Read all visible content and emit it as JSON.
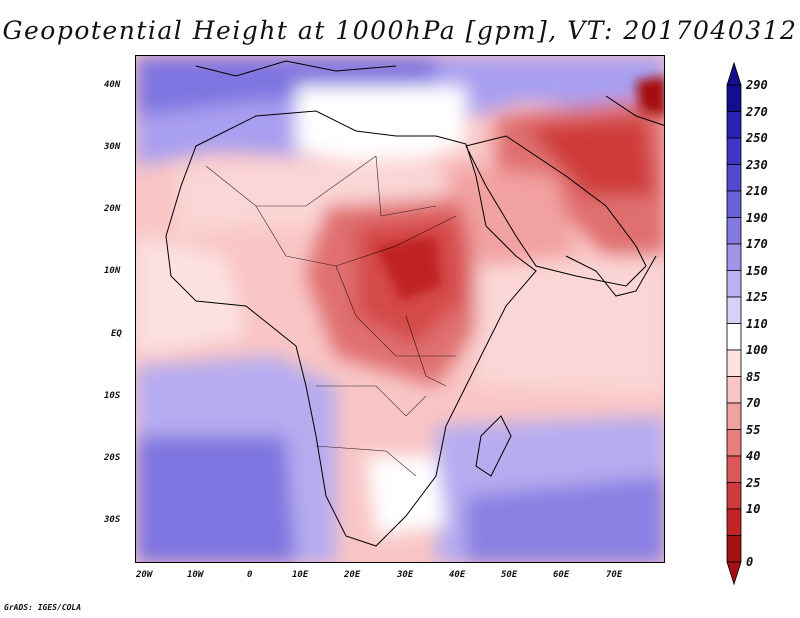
{
  "title": "Geopotential Height at 1000hPa [gpm], VT: 2017040312",
  "credit": "GrADS: IGES/COLA",
  "map": {
    "projection": "latlon",
    "lon_range": [
      -20,
      80
    ],
    "lat_range": [
      -35,
      45
    ],
    "lon_ticks": [
      "20W",
      "10W",
      "0",
      "10E",
      "20E",
      "30E",
      "40E",
      "50E",
      "60E",
      "70E"
    ],
    "lat_ticks": [
      "40N",
      "30N",
      "20N",
      "10N",
      "EQ",
      "10S",
      "20S",
      "30S"
    ]
  },
  "colorbar": {
    "levels": [
      "290",
      "270",
      "250",
      "230",
      "210",
      "190",
      "170",
      "150",
      "125",
      "110",
      "100",
      "85",
      "70",
      "55",
      "40",
      "25",
      "10",
      "0"
    ],
    "colors": [
      "#120e8c",
      "#2a22b0",
      "#3f36c6",
      "#5448d0",
      "#6a60d9",
      "#8479e0",
      "#9e95e8",
      "#bab2f0",
      "#d6d2f7",
      "#ffffff",
      "#fde2e2",
      "#f9c5c5",
      "#f2a1a1",
      "#e87d7d",
      "#dc5858",
      "#cf3b3b",
      "#c02424",
      "#a51010"
    ],
    "arrow_top_color": "#120e8c",
    "arrow_bottom_color": "#a51010"
  }
}
